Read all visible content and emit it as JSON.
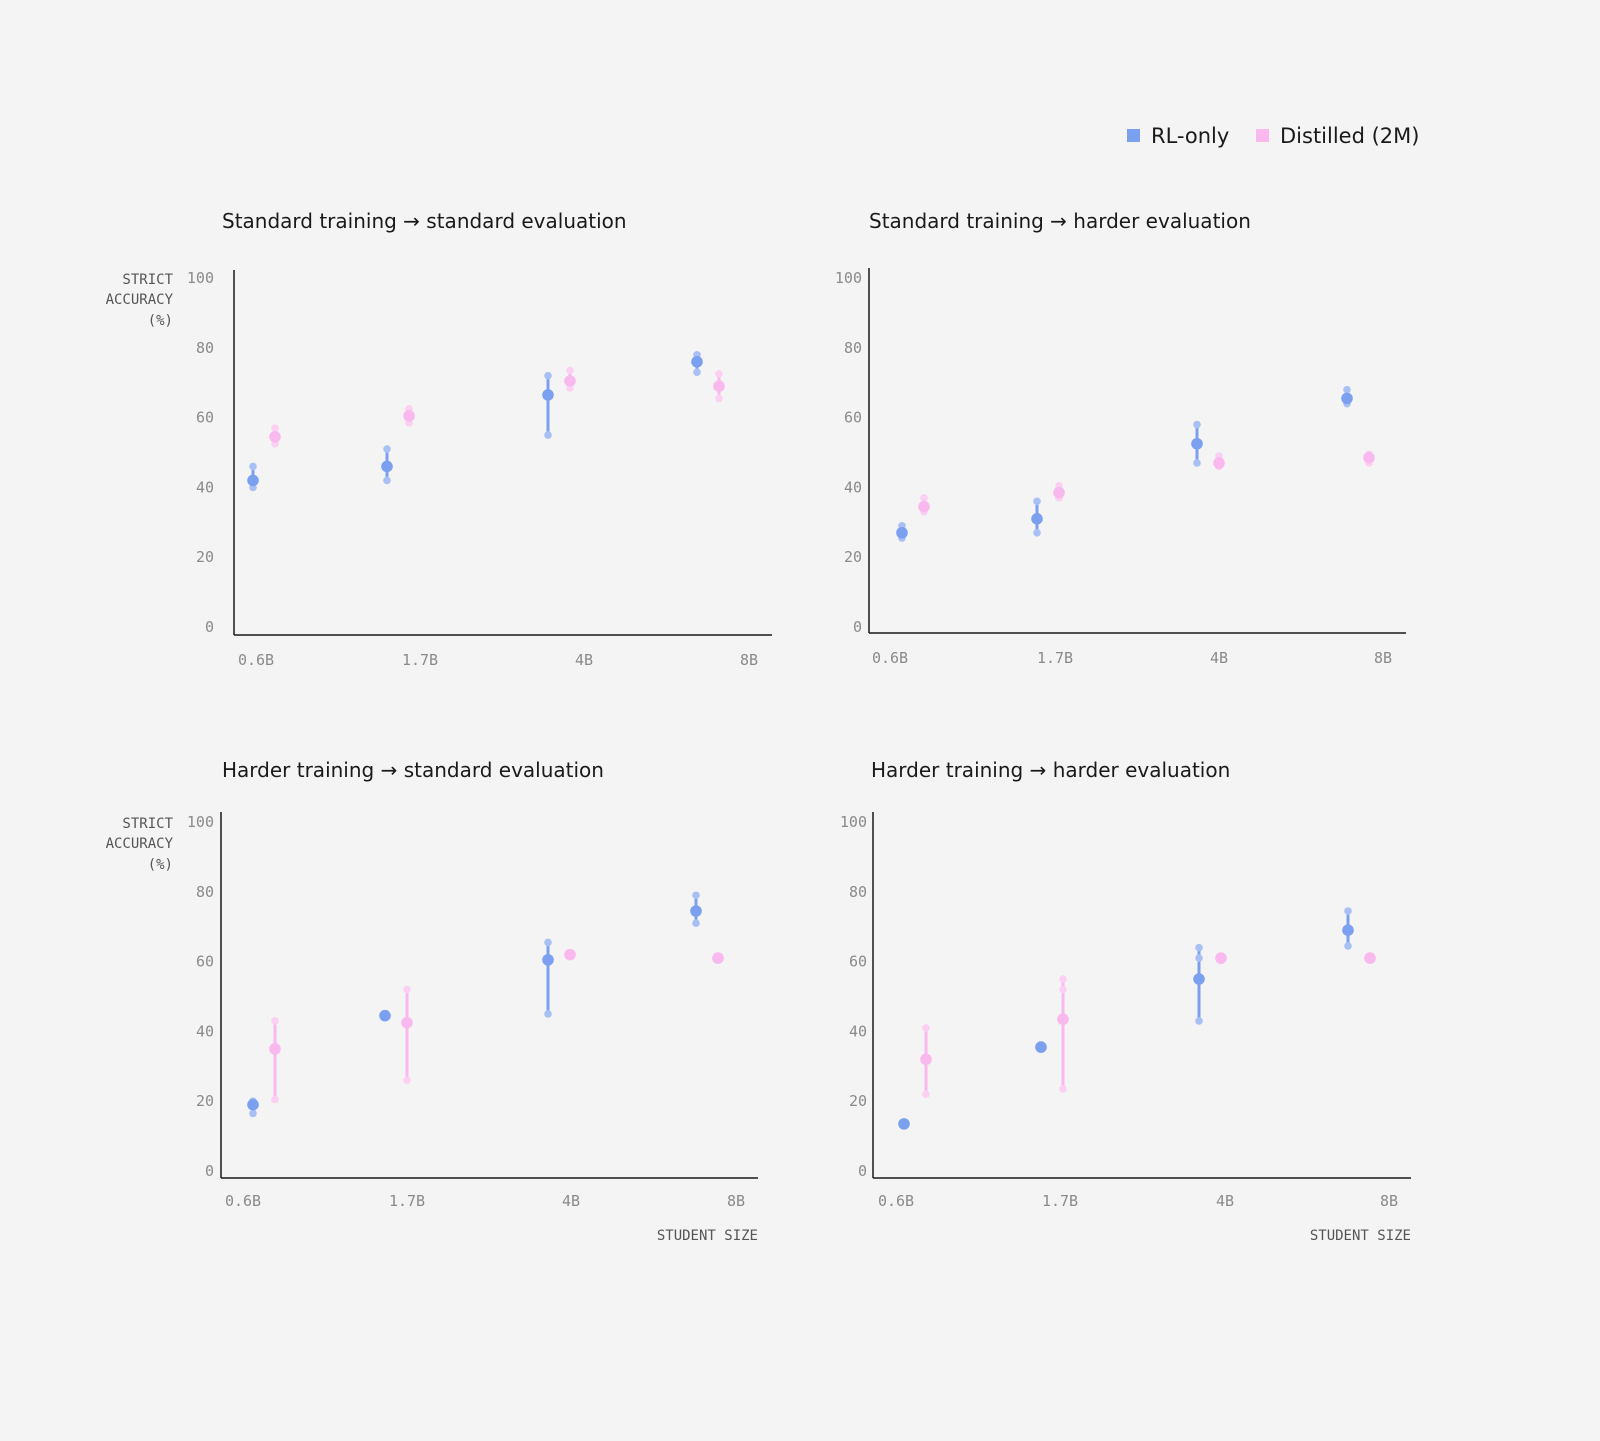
{
  "colors": {
    "rl": "#7ba0f0",
    "distilled": "#f9b8ee",
    "rl_run": "#a9c0f4",
    "distilled_run": "#fbd0f3"
  },
  "legend": [
    {
      "name": "RL-only",
      "color": "#7ba0f0"
    },
    {
      "name": "Distilled (2M)",
      "color": "#f9b8ee"
    }
  ],
  "chart_data": [
    {
      "type": "scatter",
      "title": "Standard training → standard evaluation",
      "categories": [
        "0.6B",
        "1.7B",
        "4B",
        "8B"
      ],
      "ylabel": [
        "STRICT",
        "ACCURACY",
        "(%)"
      ],
      "xlabel": "",
      "ylim": [
        0,
        100
      ],
      "yticks": [
        "0",
        "20",
        "40",
        "60",
        "80",
        "100"
      ],
      "grid": false,
      "series": [
        {
          "name": "RL-only",
          "color": "#7ba0f0",
          "values": [
            42,
            46,
            66.5,
            76
          ],
          "low": [
            40,
            42,
            55,
            73
          ],
          "high": [
            46,
            51,
            72,
            78
          ],
          "runs": [
            [
              40,
              46
            ],
            [
              42,
              51
            ],
            [
              55,
              72
            ],
            [
              73,
              78
            ]
          ]
        },
        {
          "name": "Distilled (2M)",
          "color": "#f9b8ee",
          "values": [
            54.5,
            60.5,
            70.5,
            69
          ],
          "low": [
            52.5,
            58.5,
            68.5,
            65.5
          ],
          "high": [
            57,
            62.5,
            73.5,
            72.5
          ],
          "runs": [
            [
              52.5,
              57
            ],
            [
              58.5,
              62.5
            ],
            [
              68.5,
              73.5
            ],
            [
              65.5,
              72.5
            ]
          ]
        }
      ]
    },
    {
      "type": "scatter",
      "title": "Standard training → harder evaluation",
      "categories": [
        "0.6B",
        "1.7B",
        "4B",
        "8B"
      ],
      "ylabel": [],
      "xlabel": "",
      "ylim": [
        0,
        100
      ],
      "yticks": [
        "0",
        "20",
        "40",
        "60",
        "80",
        "100"
      ],
      "grid": false,
      "series": [
        {
          "name": "RL-only",
          "color": "#7ba0f0",
          "values": [
            27,
            31,
            52.5,
            65.5
          ],
          "low": [
            25.5,
            27,
            47,
            64
          ],
          "high": [
            29,
            36,
            58,
            68
          ],
          "runs": [
            [
              25.5,
              29
            ],
            [
              27,
              36
            ],
            [
              47,
              58
            ],
            [
              64,
              68
            ]
          ]
        },
        {
          "name": "Distilled (2M)",
          "color": "#f9b8ee",
          "values": [
            34.5,
            38.5,
            47,
            48.5
          ],
          "low": [
            33,
            37,
            46,
            47
          ],
          "high": [
            37,
            40.5,
            49,
            49.5
          ],
          "runs": [
            [
              33,
              37
            ],
            [
              37,
              40.5
            ],
            [
              46,
              49
            ],
            [
              47,
              49.5
            ]
          ]
        }
      ]
    },
    {
      "type": "scatter",
      "title": "Harder training → standard evaluation",
      "categories": [
        "0.6B",
        "1.7B",
        "4B",
        "8B"
      ],
      "ylabel": [
        "STRICT",
        "ACCURACY",
        "(%)"
      ],
      "xlabel": "STUDENT SIZE",
      "ylim": [
        0,
        100
      ],
      "yticks": [
        "0",
        "20",
        "40",
        "60",
        "80",
        "100"
      ],
      "grid": false,
      "series": [
        {
          "name": "RL-only",
          "color": "#7ba0f0",
          "values": [
            19,
            44.5,
            60.5,
            74.5
          ],
          "low": [
            16.5,
            44.5,
            45,
            71
          ],
          "high": [
            20,
            44.5,
            65.5,
            79
          ],
          "runs": [
            [
              16.5,
              20
            ],
            [
              44.5
            ],
            [
              45,
              65.5
            ],
            [
              71,
              79
            ]
          ]
        },
        {
          "name": "Distilled (2M)",
          "color": "#f9b8ee",
          "values": [
            35,
            42.5,
            62,
            61
          ],
          "low": [
            20.5,
            26,
            62,
            61
          ],
          "high": [
            43,
            52,
            62,
            61
          ],
          "runs": [
            [
              20.5,
              43
            ],
            [
              26,
              52
            ],
            [
              62
            ],
            [
              61
            ]
          ]
        }
      ]
    },
    {
      "type": "scatter",
      "title": "Harder training → harder evaluation",
      "categories": [
        "0.6B",
        "1.7B",
        "4B",
        "8B"
      ],
      "ylabel": [],
      "xlabel": "STUDENT SIZE",
      "ylim": [
        0,
        100
      ],
      "yticks": [
        "0",
        "20",
        "40",
        "60",
        "80",
        "100"
      ],
      "grid": false,
      "series": [
        {
          "name": "RL-only",
          "color": "#7ba0f0",
          "values": [
            13.5,
            35.5,
            55,
            69
          ],
          "low": [
            13.5,
            35.5,
            43,
            64.5
          ],
          "high": [
            13.5,
            35.5,
            64,
            74.5
          ],
          "runs": [
            [
              13.5
            ],
            [
              35.5
            ],
            [
              43,
              61,
              64
            ],
            [
              64.5,
              74.5
            ]
          ]
        },
        {
          "name": "Distilled (2M)",
          "color": "#f9b8ee",
          "values": [
            32,
            43.5,
            61,
            61
          ],
          "low": [
            22,
            23.5,
            61,
            61
          ],
          "high": [
            41,
            55,
            61,
            61
          ],
          "runs": [
            [
              22,
              41
            ],
            [
              23.5,
              52,
              55
            ],
            [
              61
            ],
            [
              61
            ]
          ]
        }
      ]
    }
  ]
}
